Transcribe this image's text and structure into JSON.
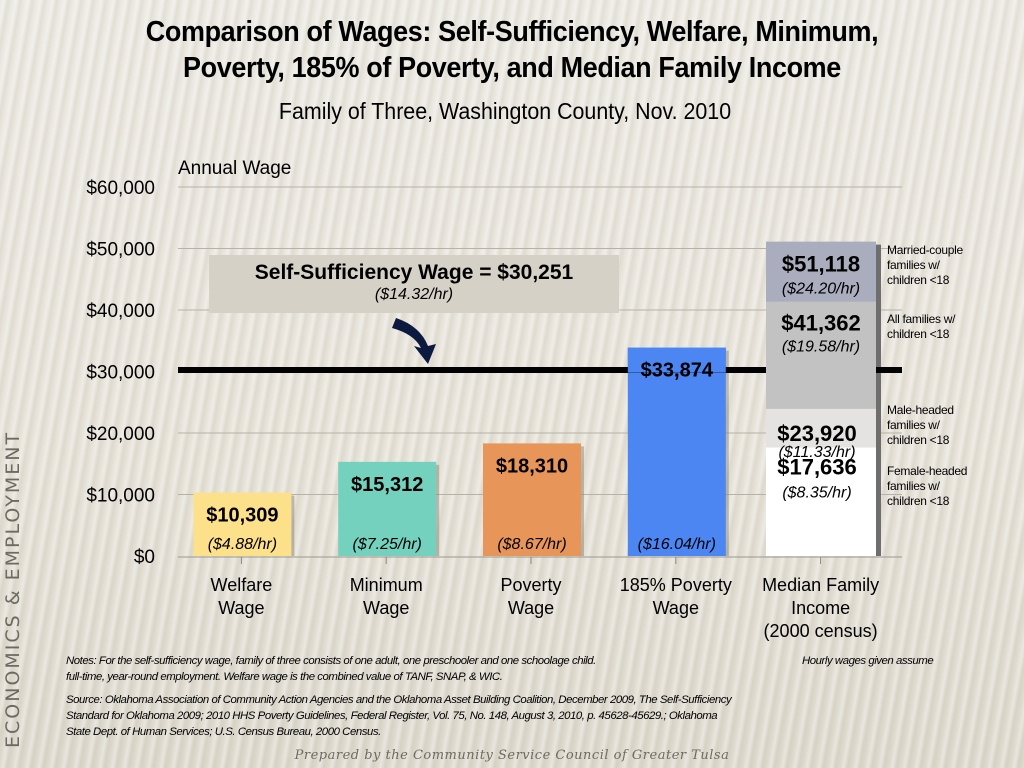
{
  "slide": {
    "title_line1": "Comparison of Wages: Self-Sufficiency, Welfare, Minimum,",
    "title_line2": "Poverty, 185% of Poverty, and Median Family Income",
    "subtitle": "Family of Three, Washington County, Nov. 2010",
    "side_label": "ECONOMICS & EMPLOYMENT",
    "footer": "Prepared by the Community Service Council of Greater Tulsa"
  },
  "self_sufficiency": {
    "label": "Self-Sufficiency Wage = $30,251",
    "hourly": "($14.32/hr)",
    "value": 30251
  },
  "notes": {
    "note_line1": "Notes:  For the self-sufficiency wage, family of three consists of one adult, one preschooler and one schoolage child.",
    "note_right": "Hourly wages given assume",
    "note_line2": "full-time, year-round employment.  Welfare wage is the combined value of TANF, SNAP, & WIC.",
    "source_line1": "Source:  Oklahoma Association of Community Action Agencies and the Oklahoma Asset Building Coalition, December 2009, The Self-Sufficiency",
    "source_line2": "Standard for Oklahoma 2009; 2010 HHS Poverty Guidelines, Federal Register, Vol. 75, No. 148, August 3, 2010, p. 45628-45629.; Oklahoma",
    "source_line3": "State Dept. of Human Services; U.S. Census Bureau, 2000 Census."
  },
  "chart_data": {
    "type": "bar",
    "title": "Comparison of Wages: Self-Sufficiency, Welfare, Minimum, Poverty, 185% of Poverty, and Median Family Income",
    "subtitle": "Family of Three, Washington County, Nov. 2010",
    "xlabel": "",
    "ylabel": "Annual Wage",
    "ylim": [
      0,
      60000
    ],
    "yticks": [
      0,
      10000,
      20000,
      30000,
      40000,
      50000,
      60000
    ],
    "ytick_labels": [
      "$0",
      "$10,000",
      "$20,000",
      "$30,000",
      "$40,000",
      "$50,000",
      "$60,000"
    ],
    "grid": true,
    "categories": [
      [
        "Welfare",
        "Wage"
      ],
      [
        "Minimum",
        "Wage"
      ],
      [
        "Poverty",
        "Wage"
      ],
      [
        "185% Poverty",
        "Wage"
      ],
      [
        "Median Family",
        "Income",
        "(2000 census)"
      ]
    ],
    "bars": [
      {
        "value": 10309,
        "label": "$10,309",
        "hourly": "($4.88/hr)",
        "color": "#fde08a"
      },
      {
        "value": 15312,
        "label": "$15,312",
        "hourly": "($7.25/hr)",
        "color": "#74d1be"
      },
      {
        "value": 18310,
        "label": "$18,310",
        "hourly": "($8.67/hr)",
        "color": "#e8955a"
      },
      {
        "value": 33874,
        "label": "$33,874",
        "hourly": "($16.04/hr)",
        "color": "#4b86f2"
      }
    ],
    "median_segments": [
      {
        "value": 17636,
        "label": "$17,636",
        "hourly": "($8.35/hr)",
        "color": "#ffffff",
        "group": "Female-headed families w/ children <18"
      },
      {
        "value": 23920,
        "label": "$23,920",
        "hourly": "($11.33/hr)",
        "color": "#e4e3e1",
        "group": "Male-headed families w/ children <18"
      },
      {
        "value": 41362,
        "label": "$41,362",
        "hourly": "($19.58/hr)",
        "color": "#c2c2c2",
        "group": "All families w/ children <18"
      },
      {
        "value": 51118,
        "label": "$51,118",
        "hourly": "($24.20/hr)",
        "color": "#a9adbd",
        "group": "Married-couple families w/ children <18"
      }
    ],
    "reference_line": {
      "value": 30251,
      "label": "Self-Sufficiency Wage = $30,251",
      "hourly": "($14.32/hr)",
      "color": "#000000"
    },
    "legend_notes": [
      [
        "Married-couple",
        "families w/",
        "children <18"
      ],
      [
        "All families w/",
        "children <18"
      ],
      [
        "Male-headed",
        "families w/",
        "children <18"
      ],
      [
        "Female-headed",
        "families w/",
        "children <18"
      ]
    ]
  }
}
